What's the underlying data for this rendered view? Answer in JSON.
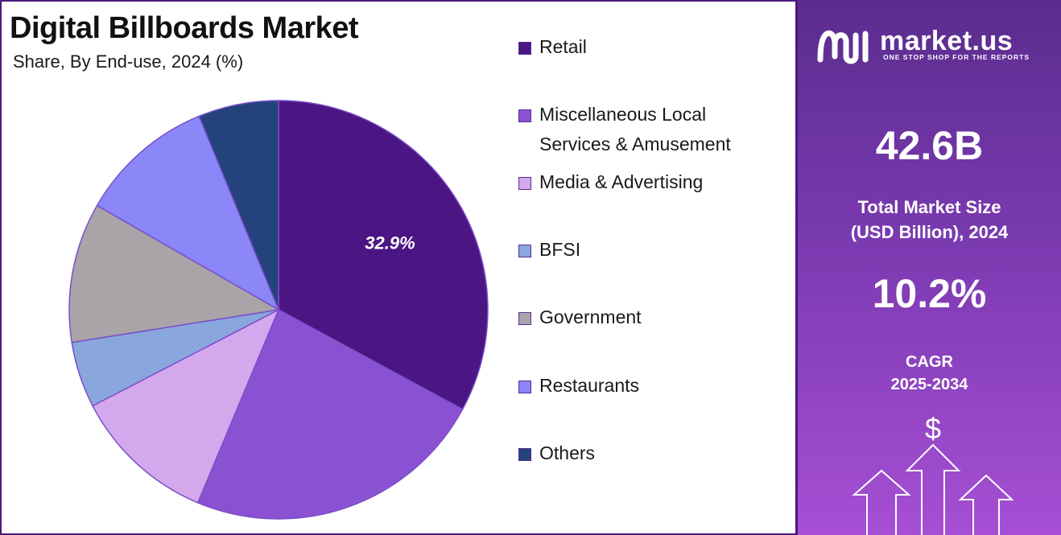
{
  "header": {
    "title": "Digital Billboards Market",
    "subtitle": "Share, By End-use, 2024 (%)"
  },
  "chart_data": {
    "type": "pie",
    "title": "Digital Billboards Market",
    "subtitle": "Share, By End-use, 2024 (%)",
    "start_angle_deg": 0,
    "direction": "clockwise",
    "legend_position": "right",
    "slices": [
      {
        "label": "Retail",
        "value": 32.9,
        "color": "#4b1683",
        "data_label": "32.9%"
      },
      {
        "label": "Miscellaneous Local Services & Amusement",
        "value": 23.4,
        "color": "#8a52d2"
      },
      {
        "label": "Media & Advertising",
        "value": 11.1,
        "color": "#d4a8ec"
      },
      {
        "label": "BFSI",
        "value": 5.1,
        "color": "#8aa7dd"
      },
      {
        "label": "Government",
        "value": 10.8,
        "color": "#a9a4a8"
      },
      {
        "label": "Restaurants",
        "value": 10.5,
        "color": "#8b87f8"
      },
      {
        "label": "Others",
        "value": 6.2,
        "color": "#24437d"
      }
    ]
  },
  "legend": {
    "items": [
      {
        "lines": [
          "Retail"
        ],
        "color": "#4b1683"
      },
      {
        "lines": [
          "Miscellaneous Local",
          "Services & Amusement"
        ],
        "color": "#8a52d2"
      },
      {
        "lines": [
          "Media & Advertising"
        ],
        "color": "#d4a8ec"
      },
      {
        "lines": [
          "BFSI"
        ],
        "color": "#8aa7dd"
      },
      {
        "lines": [
          "Government"
        ],
        "color": "#a9a4a8"
      },
      {
        "lines": [
          "Restaurants"
        ],
        "color": "#8b87f8"
      },
      {
        "lines": [
          "Others"
        ],
        "color": "#24437d"
      }
    ]
  },
  "panel": {
    "logo_text": "market.us",
    "logo_tagline": "ONE STOP SHOP FOR THE REPORTS",
    "market_size_value": "42.6B",
    "market_size_label_line1": "Total Market Size",
    "market_size_label_line2": "(USD Billion), 2024",
    "cagr_value": "10.2%",
    "cagr_label_line1": "CAGR",
    "cagr_label_line2": "2025-2034",
    "dollar_symbol": "$",
    "icon": "growth-arrows-icon"
  }
}
